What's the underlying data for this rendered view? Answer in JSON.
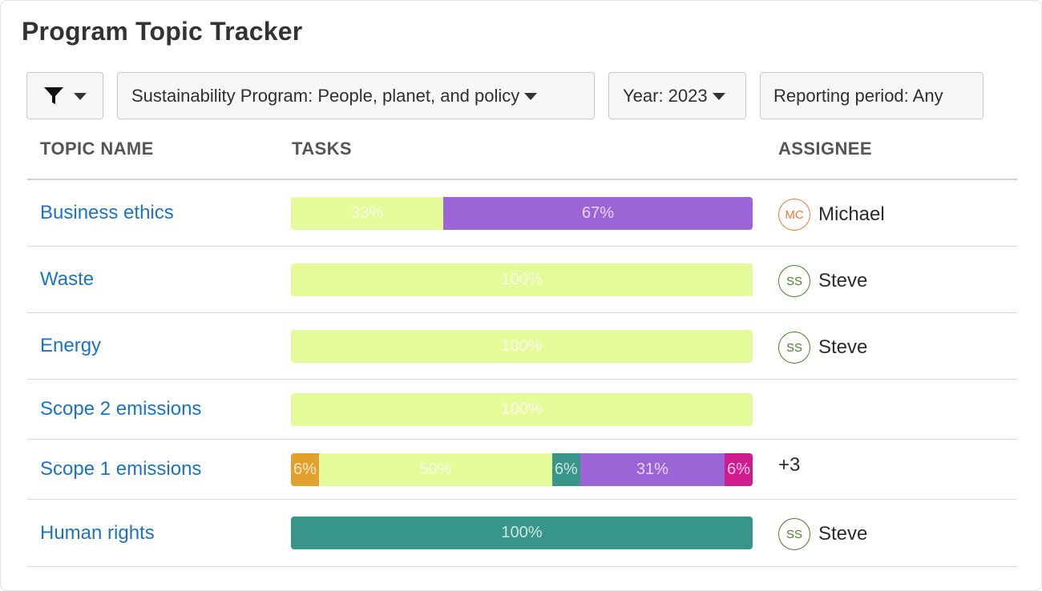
{
  "title": "Program Topic Tracker",
  "filters": {
    "filter_icon": "funnel-icon",
    "program": "Sustainability Program: People, planet, and policy",
    "year": "Year: 2023",
    "period": "Reporting period: Any"
  },
  "columns": {
    "topic": "TOPIC NAME",
    "tasks": "TASKS",
    "assignee": "ASSIGNEE"
  },
  "colors": {
    "lime": "#e5fb9a",
    "purple": "#9d64d8",
    "teal": "#37958a",
    "orange": "#e2a12d",
    "magenta": "#cf1c8f",
    "link": "#1a73c8",
    "avatar_orange": "#ef7a2e",
    "avatar_green": "#4f7a2a"
  },
  "rows": [
    {
      "topic": "Business ethics",
      "segments": [
        {
          "value": 33,
          "label": "33%",
          "color": "lime"
        },
        {
          "value": 67,
          "label": "67%",
          "color": "purple"
        }
      ],
      "assignee": {
        "initials": "MC",
        "name": "Michael",
        "color": "avatar_orange"
      }
    },
    {
      "topic": "Waste",
      "segments": [
        {
          "value": 100,
          "label": "100%",
          "color": "lime"
        }
      ],
      "assignee": {
        "initials": "SS",
        "name": "Steve",
        "color": "avatar_green"
      }
    },
    {
      "topic": "Energy",
      "segments": [
        {
          "value": 100,
          "label": "100%",
          "color": "lime"
        }
      ],
      "assignee": {
        "initials": "SS",
        "name": "Steve",
        "color": "avatar_green"
      }
    },
    {
      "topic": "Scope 2 emissions",
      "segments": [
        {
          "value": 100,
          "label": "100%",
          "color": "lime"
        }
      ],
      "assignee": null
    },
    {
      "topic": "Scope 1 emissions",
      "segments": [
        {
          "value": 6,
          "label": "6%",
          "color": "orange"
        },
        {
          "value": 50,
          "label": "50%",
          "color": "lime"
        },
        {
          "value": 6,
          "label": "6%",
          "color": "teal"
        },
        {
          "value": 31,
          "label": "31%",
          "color": "purple"
        },
        {
          "value": 6,
          "label": "6%",
          "color": "magenta"
        }
      ],
      "assignee": {
        "more": "+3"
      }
    },
    {
      "topic": "Human rights",
      "segments": [
        {
          "value": 100,
          "label": "100%",
          "color": "teal"
        }
      ],
      "assignee": {
        "initials": "SS",
        "name": "Steve",
        "color": "avatar_green"
      }
    }
  ]
}
